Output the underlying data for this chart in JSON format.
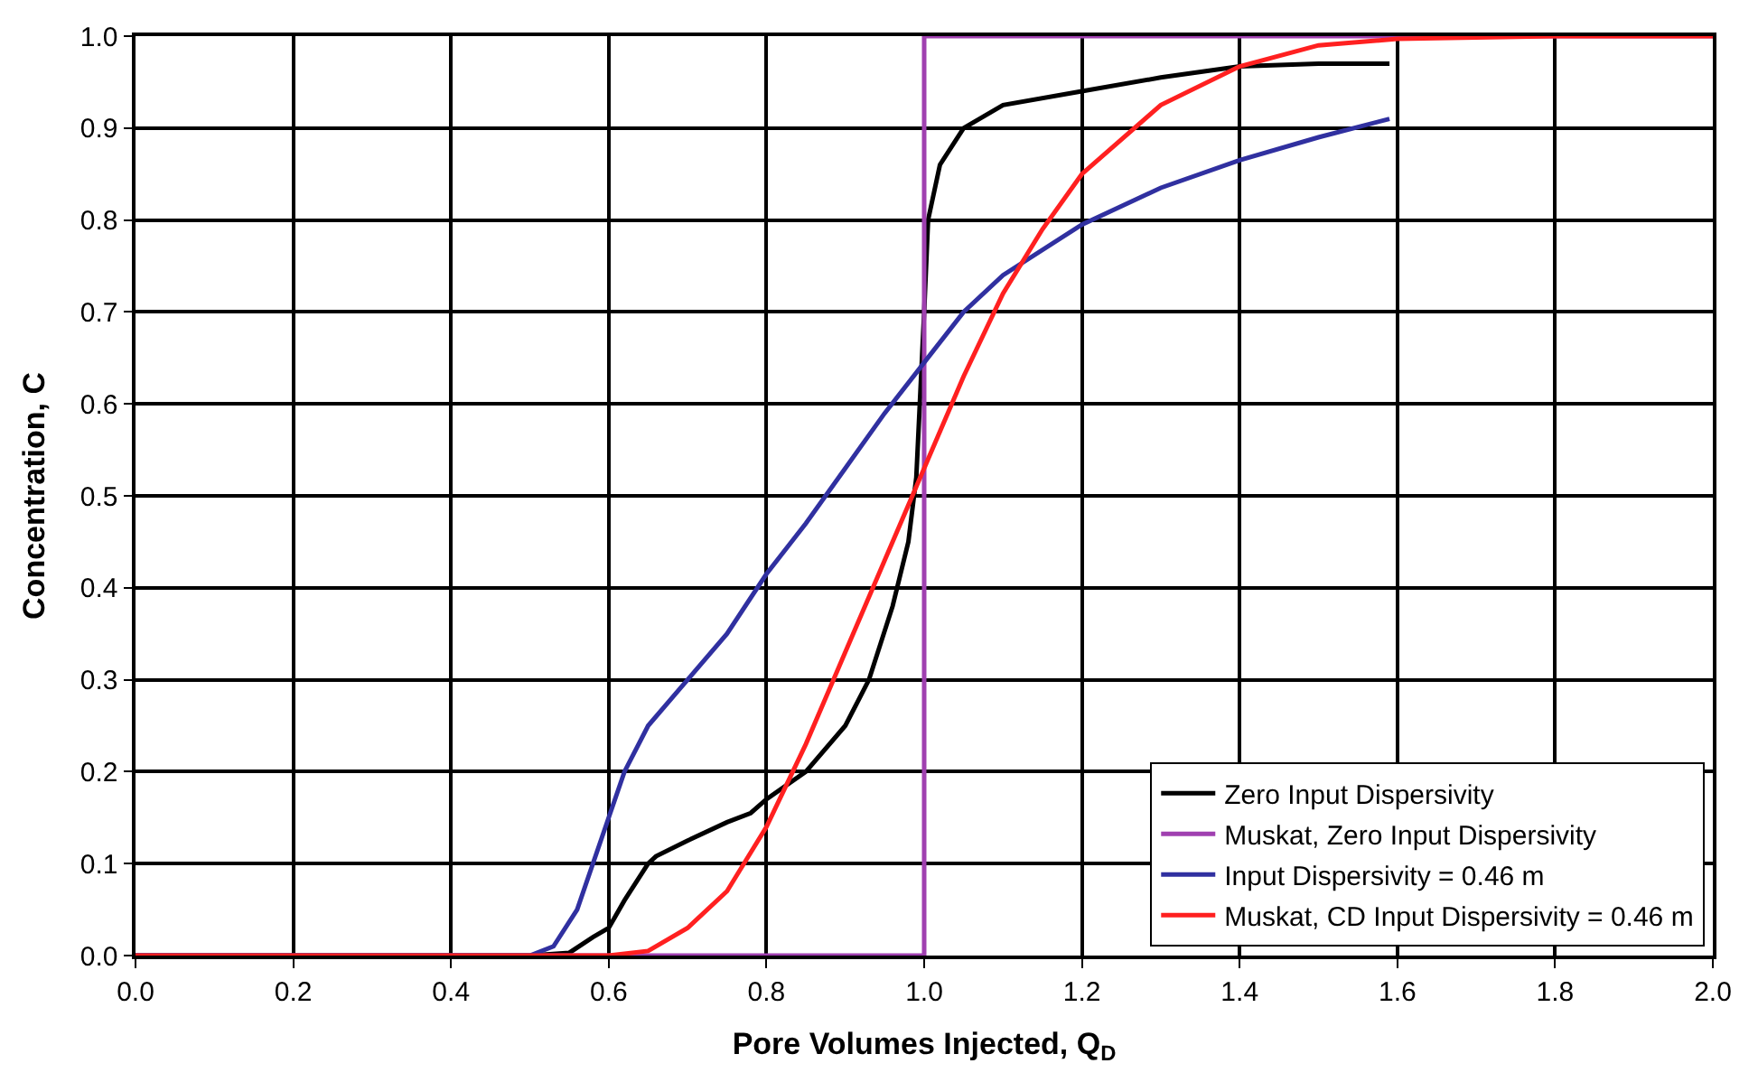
{
  "chart_data": {
    "type": "line",
    "xlabel": "Pore Volumes Injected, Q$_{D}$",
    "ylabel": "Concentration, C",
    "xlim": [
      0,
      2
    ],
    "xticks": [
      {
        "value": 0,
        "label": "0.0"
      },
      {
        "value": 0.2,
        "label": "0.2"
      },
      {
        "value": 0.4,
        "label": "0.4"
      },
      {
        "value": 0.6,
        "label": "0.6"
      },
      {
        "value": 0.8,
        "label": "0.8"
      },
      {
        "value": 1,
        "label": "1.0"
      },
      {
        "value": 1.2,
        "label": "1.2"
      },
      {
        "value": 1.4,
        "label": "1.4"
      },
      {
        "value": 1.6,
        "label": "1.6"
      },
      {
        "value": 1.8,
        "label": "1.8"
      },
      {
        "value": 2,
        "label": "2.0"
      }
    ],
    "ylim": [
      0,
      1
    ],
    "yticks": [
      {
        "value": 0,
        "label": "0.0"
      },
      0.1,
      0.2,
      0.3,
      0.4,
      0.5,
      0.6,
      0.7,
      0.8,
      0.9,
      {
        "value": 1,
        "label": "1.0"
      }
    ],
    "grid": true,
    "legend": "bottom right",
    "marker": "none",
    "line_style": "solid",
    "series": [
      {
        "name": "Zero Input Dispersivity",
        "color": "#000000",
        "x": [
          0,
          0.5,
          0.55,
          0.58,
          0.6,
          0.62,
          0.65,
          0.66,
          0.7,
          0.75,
          0.78,
          0.8,
          0.85,
          0.9,
          0.93,
          0.96,
          0.98,
          0.99,
          1.0,
          1.005,
          1.02,
          1.05,
          1.1,
          1.2,
          1.3,
          1.4,
          1.5,
          1.59
        ],
        "values": [
          0,
          0,
          0.003,
          0.02,
          0.03,
          0.06,
          0.1,
          0.108,
          0.125,
          0.145,
          0.155,
          0.17,
          0.2,
          0.25,
          0.3,
          0.38,
          0.45,
          0.52,
          0.7,
          0.8,
          0.86,
          0.9,
          0.925,
          0.94,
          0.955,
          0.967,
          0.97,
          0.97
        ]
      },
      {
        "name": "Muskat, Zero Input Dispersivity",
        "color": "#a040b0",
        "x": [
          0,
          1,
          1,
          2
        ],
        "values": [
          0,
          0,
          1,
          1
        ]
      },
      {
        "name": "Input Dispersivity = 0.46 m",
        "color": "#3030a0",
        "x": [
          0,
          0.5,
          0.53,
          0.56,
          0.6,
          0.62,
          0.65,
          0.7,
          0.75,
          0.8,
          0.85,
          0.9,
          0.95,
          1.0,
          1.05,
          1.1,
          1.2,
          1.3,
          1.4,
          1.5,
          1.59
        ],
        "values": [
          0,
          0,
          0.01,
          0.05,
          0.15,
          0.2,
          0.25,
          0.3,
          0.35,
          0.415,
          0.47,
          0.53,
          0.59,
          0.645,
          0.7,
          0.74,
          0.795,
          0.835,
          0.865,
          0.89,
          0.91
        ]
      },
      {
        "name": "Muskat, CD Input Dispersivity = 0.46 m",
        "color": "#ff2020",
        "x": [
          0,
          0.6,
          0.65,
          0.7,
          0.75,
          0.8,
          0.85,
          0.9,
          0.95,
          1.0,
          1.05,
          1.1,
          1.15,
          1.2,
          1.3,
          1.4,
          1.5,
          1.6,
          1.8,
          2.0
        ],
        "values": [
          0,
          0,
          0.005,
          0.03,
          0.07,
          0.14,
          0.23,
          0.33,
          0.43,
          0.53,
          0.63,
          0.72,
          0.79,
          0.85,
          0.925,
          0.967,
          0.99,
          0.997,
          1.0,
          1.0
        ]
      }
    ]
  }
}
